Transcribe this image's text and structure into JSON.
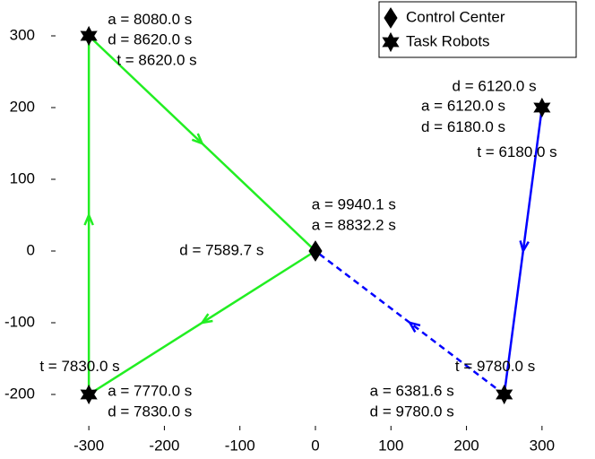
{
  "chart_data": {
    "type": "line",
    "xlim": [
      -350,
      350
    ],
    "ylim": [
      -250,
      350
    ],
    "xticks": [
      -300,
      -200,
      -100,
      0,
      100,
      200,
      300
    ],
    "yticks": [
      -200,
      -100,
      0,
      100,
      200,
      300
    ],
    "legend": "upper right",
    "series": [
      {
        "name": "Control Center",
        "marker": "diamond",
        "color": "#000000",
        "x": [
          0
        ],
        "y": [
          0
        ]
      },
      {
        "name": "Task Robots",
        "marker": "hexagram",
        "color": "#000000",
        "x": [
          -300,
          -300,
          300,
          250
        ],
        "y": [
          300,
          -200,
          200,
          -200
        ]
      }
    ],
    "lines": [
      {
        "color": "#22ee22",
        "style": "solid",
        "x": [
          0,
          -300,
          -300,
          0
        ],
        "y": [
          0,
          -200,
          300,
          0
        ]
      },
      {
        "color": "#0000ff",
        "style": "solid",
        "x": [
          300,
          250
        ],
        "y": [
          200,
          -200
        ]
      },
      {
        "color": "#0000ff",
        "style": "dashed",
        "x": [
          250,
          0
        ],
        "y": [
          -200,
          0
        ]
      }
    ],
    "arrows": true,
    "annotations": [
      {
        "text": "a = 8080.0 s",
        "x": -275,
        "y": 322
      },
      {
        "text": "d = 8620.0 s",
        "x": -275,
        "y": 294
      },
      {
        "text": "t = 8620.0 s",
        "x": -263,
        "y": 265
      },
      {
        "text": "d = 6120.0 s",
        "x": 181,
        "y": 229
      },
      {
        "text": "a = 6120.0 s",
        "x": 140,
        "y": 201
      },
      {
        "text": "d = 6180.0 s",
        "x": 140,
        "y": 172
      },
      {
        "text": "t = 6180.0 s",
        "x": 214,
        "y": 137
      },
      {
        "text": "a = 9940.1 s",
        "x": -5,
        "y": 64
      },
      {
        "text": "a = 8832.2 s",
        "x": -5,
        "y": 35
      },
      {
        "text": "d = 7589.7 s",
        "x": -180,
        "y": 0
      },
      {
        "text": "t = 7830.0 s",
        "x": -365,
        "y": -162
      },
      {
        "text": "a = 7770.0 s",
        "x": -275,
        "y": -196
      },
      {
        "text": "d = 7830.0 s",
        "x": -275,
        "y": -225
      },
      {
        "text": "t = 9780.0 s",
        "x": 185,
        "y": -162
      },
      {
        "text": "a = 6381.6 s",
        "x": 72,
        "y": -196
      },
      {
        "text": "d = 9780.0 s",
        "x": 72,
        "y": -225
      }
    ]
  }
}
